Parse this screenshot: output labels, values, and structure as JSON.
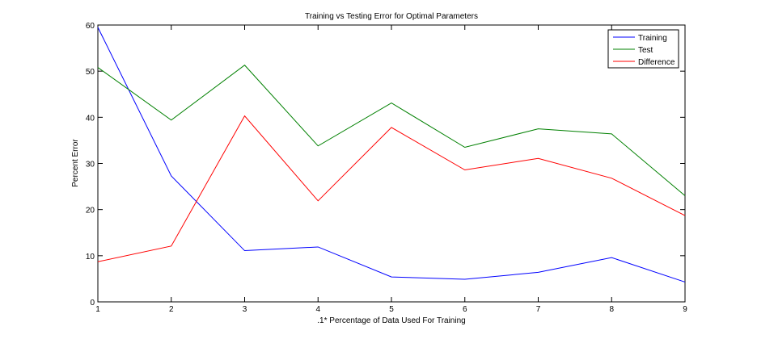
{
  "chart_data": {
    "type": "line",
    "title": "Training vs Testing Error for Optimal Parameters",
    "xlabel": ".1* Percentage of Data Used For Training",
    "ylabel": "Percent Error",
    "x": [
      1,
      2,
      3,
      4,
      5,
      6,
      7,
      8,
      9
    ],
    "xlim": [
      1,
      9
    ],
    "ylim": [
      0,
      60
    ],
    "xticks": [
      "1",
      "2",
      "3",
      "4",
      "5",
      "6",
      "7",
      "8",
      "9"
    ],
    "yticks": [
      "0",
      "10",
      "20",
      "30",
      "40",
      "50",
      "60"
    ],
    "grid": false,
    "legend_position": "top-right",
    "series": [
      {
        "name": "Training",
        "color": "#0000ff",
        "values": [
          59.5,
          27.3,
          11.1,
          11.9,
          5.4,
          4.9,
          6.4,
          9.6,
          4.3
        ]
      },
      {
        "name": "Test",
        "color": "#008000",
        "values": [
          50.8,
          39.4,
          51.3,
          33.8,
          43.1,
          33.5,
          37.5,
          36.4,
          23.0
        ]
      },
      {
        "name": "Difference",
        "color": "#ff0000",
        "values": [
          8.7,
          12.1,
          40.3,
          21.9,
          37.8,
          28.6,
          31.1,
          26.8,
          18.7
        ]
      }
    ]
  }
}
